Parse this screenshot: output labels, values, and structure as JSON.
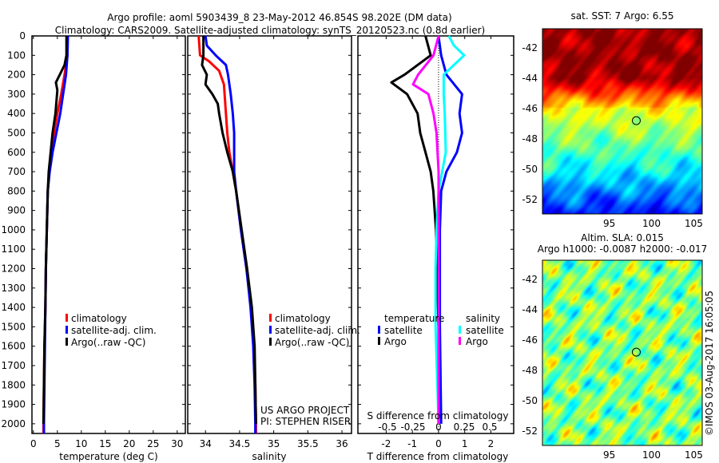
{
  "title": {
    "line1": "Argo profile: aoml 5903439_8 23-May-2012 46.854S 98.202E (DM data)",
    "line2": "Climatology: CARS2009. Satellite-adjusted climatology: synTS_20120523.nc (0.8d earlier)"
  },
  "colors": {
    "climatology": "#ff0000",
    "satellite": "#0000ff",
    "argo": "#000000",
    "s_satellite": "#00ffff",
    "s_argo": "#ff00ff"
  },
  "depth_ticks": [
    "0",
    "100",
    "200",
    "300",
    "400",
    "500",
    "600",
    "700",
    "800",
    "900",
    "1000",
    "1100",
    "1200",
    "1300",
    "1400",
    "1500",
    "1600",
    "1700",
    "1800",
    "1900",
    "2000"
  ],
  "legend": {
    "climatology": "climatology",
    "satellite": "satellite-adj. clim.",
    "argo": "Argo(..raw -QC)"
  },
  "diff_legend": {
    "temperature": "temperature",
    "salinity": "salinity",
    "satellite": "satellite",
    "argo": "Argo"
  },
  "credits": {
    "project": "US ARGO PROJECT",
    "pi": "PI: STEPHEN RISER"
  },
  "maps": {
    "sst_title": "sat. SST: 7 Argo: 6.55",
    "sla_title1": "Altim. SLA: 0.015",
    "sla_title2": "Argo h1000: -0.0087 h2000: -0.017",
    "lat_ticks": [
      "-42",
      "-44",
      "-46",
      "-48",
      "-50",
      "-52"
    ],
    "lon_ticks": [
      "95",
      "100",
      "105"
    ],
    "float_lon": 98.202,
    "float_lat": -46.854
  },
  "timestamp": "©IMOS 03-Aug-2017 16:05:05",
  "chart_data": [
    {
      "type": "line",
      "xlabel": "temperature (deg C)",
      "ylabel": "depth",
      "xlim": [
        -0.3,
        31.7
      ],
      "ylim": [
        2050,
        0
      ],
      "x_ticks": [
        "0",
        "5",
        "10",
        "15",
        "20",
        "25",
        "30"
      ],
      "series": [
        {
          "name": "climatology",
          "depth": [
            0,
            100,
            200,
            300,
            400,
            500,
            600,
            700,
            800,
            1000,
            1200,
            1400,
            1600,
            1800,
            2000,
            2050
          ],
          "values": [
            7,
            7.1,
            6.5,
            5.8,
            5,
            4.3,
            3.7,
            3.3,
            3,
            2.8,
            2.6,
            2.5,
            2.3,
            2.2,
            2.1,
            2.1
          ]
        },
        {
          "name": "satellite-adj. clim.",
          "depth": [
            0,
            100,
            200,
            300,
            400,
            500,
            600,
            700,
            800,
            1000,
            1200,
            1400,
            1600,
            1800,
            2000,
            2050
          ],
          "values": [
            7.2,
            7.1,
            6.8,
            6.2,
            5.6,
            4.8,
            4,
            3.4,
            3,
            2.8,
            2.6,
            2.5,
            2.4,
            2.3,
            2.2,
            2.2
          ]
        },
        {
          "name": "Argo(..raw -QC)",
          "depth": [
            0,
            100,
            150,
            200,
            240,
            280,
            400,
            500,
            600,
            700,
            800,
            1000,
            1200,
            1400,
            1600,
            1800,
            2000
          ],
          "values": [
            6.9,
            6.9,
            6.5,
            5.5,
            4.7,
            5,
            4.6,
            4,
            3.6,
            3.2,
            3,
            2.8,
            2.6,
            2.5,
            2.3,
            2.2,
            2.1
          ]
        }
      ]
    },
    {
      "type": "line",
      "xlabel": "salinity",
      "ylabel": "depth",
      "xlim": [
        33.74,
        36.14
      ],
      "ylim": [
        2050,
        0
      ],
      "x_ticks": [
        "34",
        "34.5",
        "35",
        "35.5",
        "36"
      ],
      "series": [
        {
          "name": "climatology",
          "depth": [
            0,
            100,
            130,
            180,
            250,
            400,
            500,
            600,
            700,
            800,
            1000,
            1200,
            1400,
            1600,
            1800,
            2000,
            2050
          ],
          "values": [
            33.9,
            33.92,
            34.05,
            34.2,
            34.27,
            34.3,
            34.32,
            34.35,
            34.4,
            34.45,
            34.52,
            34.6,
            34.67,
            34.71,
            34.73,
            34.74,
            34.74
          ]
        },
        {
          "name": "satellite-adj. clim.",
          "depth": [
            0,
            50,
            100,
            150,
            200,
            300,
            400,
            500,
            600,
            700,
            800,
            1000,
            1200,
            1400,
            1600,
            1800,
            2000,
            2050
          ],
          "values": [
            34,
            34.02,
            34.15,
            34.3,
            34.33,
            34.37,
            34.4,
            34.42,
            34.42,
            34.42,
            34.45,
            34.52,
            34.6,
            34.66,
            34.7,
            34.72,
            34.73,
            34.73
          ]
        },
        {
          "name": "Argo(..raw -QC)",
          "depth": [
            0,
            100,
            150,
            200,
            250,
            300,
            350,
            400,
            500,
            600,
            700,
            800,
            1000,
            1200,
            1400,
            1600,
            1800,
            2000
          ],
          "values": [
            33.97,
            33.97,
            33.95,
            34.02,
            34,
            34.1,
            34.18,
            34.2,
            34.25,
            34.32,
            34.4,
            34.45,
            34.53,
            34.61,
            34.68,
            34.72,
            34.73,
            34.74
          ]
        }
      ]
    },
    {
      "type": "line",
      "xlabel": "T difference from climatology",
      "x2label": "S difference from climatology",
      "ylabel": "depth",
      "xlim": [
        -3.08,
        2.87
      ],
      "ylim": [
        2050,
        0
      ],
      "x_ticks": [
        "-2",
        "-1",
        "0",
        "1",
        "2"
      ],
      "x2_ticks": [
        "-0.5",
        "-0.25",
        "0",
        "0.25",
        "0.5"
      ],
      "series": [
        {
          "name": "temperature satellite",
          "axis": "T",
          "depth": [
            0,
            100,
            200,
            300,
            400,
            500,
            600,
            700,
            800,
            1000,
            1500,
            2000
          ],
          "values": [
            0,
            0.1,
            0.3,
            0.9,
            0.8,
            0.9,
            0.7,
            0.3,
            0.1,
            0.05,
            0.05,
            0.1
          ]
        },
        {
          "name": "temperature Argo",
          "axis": "T",
          "depth": [
            0,
            100,
            200,
            240,
            300,
            400,
            500,
            600,
            700,
            800,
            1000,
            1500,
            2000
          ],
          "values": [
            -0.5,
            -0.3,
            -1.3,
            -1.8,
            -1.2,
            -0.8,
            -0.7,
            -0.5,
            -0.3,
            -0.2,
            -0.1,
            0,
            0
          ]
        },
        {
          "name": "salinity satellite",
          "axis": "S",
          "depth": [
            0,
            50,
            100,
            150,
            200,
            300,
            400,
            600,
            800,
            1000,
            1200,
            1500,
            2000
          ],
          "values": [
            0.1,
            0.15,
            0.25,
            0.15,
            0.05,
            0.05,
            0.06,
            0.07,
            0,
            -0.02,
            -0.03,
            -0.03,
            0
          ]
        },
        {
          "name": "salinity Argo",
          "axis": "S",
          "depth": [
            0,
            100,
            200,
            250,
            300,
            400,
            500,
            700,
            1000,
            2000
          ],
          "values": [
            0,
            -0.05,
            -0.2,
            -0.25,
            -0.1,
            -0.05,
            -0.02,
            0,
            0,
            0
          ]
        }
      ]
    }
  ]
}
